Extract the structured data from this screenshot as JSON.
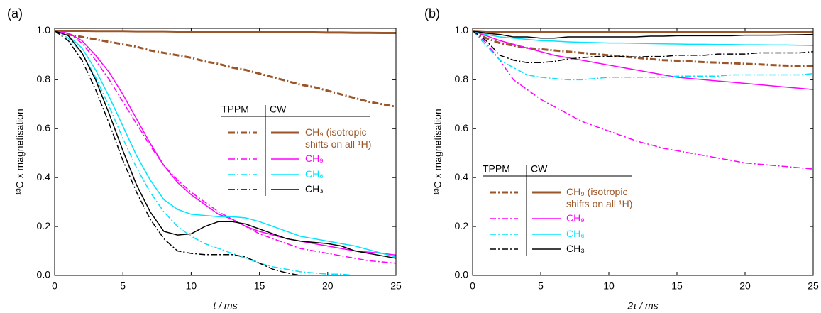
{
  "chart_data": [
    {
      "type": "line",
      "panel_label": "(a)",
      "x_label": "t / ms",
      "y_label": "¹³C x magnetisation",
      "xlim": [
        0,
        25
      ],
      "xticks": [
        0,
        5,
        10,
        15,
        20,
        25
      ],
      "ylim": [
        0,
        1.01
      ],
      "yticks": [
        {
          "value": 0,
          "label": "0.0"
        },
        0.2,
        0.4,
        0.6,
        0.8,
        {
          "value": 1,
          "label": "1.0"
        }
      ],
      "legend_position": "center-right",
      "legend_columns": [
        "TPPM",
        "CW"
      ],
      "x": [
        0,
        1,
        2,
        3,
        4,
        5,
        6,
        7,
        8,
        9,
        10,
        11,
        12,
        13,
        14,
        15,
        16,
        17,
        18,
        19,
        20,
        21,
        22,
        23,
        24,
        25
      ],
      "series": [
        {
          "name": "CH₉ (isotropic shifts on all ¹H)",
          "color": "#9a5528",
          "width": 3,
          "values_by_column": [
            [
              1.0,
              0.985,
              0.975,
              0.965,
              0.955,
              0.945,
              0.935,
              0.92,
              0.91,
              0.9,
              0.89,
              0.875,
              0.865,
              0.85,
              0.84,
              0.825,
              0.81,
              0.795,
              0.78,
              0.77,
              0.755,
              0.74,
              0.725,
              0.71,
              0.7,
              0.69
            ],
            [
              1.0,
              1.0,
              1.0,
              0.999,
              0.999,
              0.999,
              0.998,
              0.998,
              0.998,
              0.997,
              0.997,
              0.997,
              0.996,
              0.996,
              0.996,
              0.995,
              0.995,
              0.994,
              0.994,
              0.994,
              0.993,
              0.993,
              0.992,
              0.992,
              0.991,
              0.991
            ]
          ]
        },
        {
          "name": "CH₉",
          "color": "#ff00ff",
          "width": 1.5,
          "values_by_column": [
            [
              1.0,
              0.99,
              0.95,
              0.88,
              0.8,
              0.71,
              0.62,
              0.53,
              0.45,
              0.39,
              0.34,
              0.3,
              0.26,
              0.23,
              0.2,
              0.17,
              0.15,
              0.13,
              0.11,
              0.1,
              0.09,
              0.08,
              0.07,
              0.06,
              0.055,
              0.05
            ],
            [
              1.0,
              0.99,
              0.96,
              0.9,
              0.83,
              0.74,
              0.64,
              0.54,
              0.45,
              0.38,
              0.33,
              0.29,
              0.25,
              0.23,
              0.2,
              0.18,
              0.165,
              0.15,
              0.14,
              0.13,
              0.12,
              0.11,
              0.1,
              0.095,
              0.09,
              0.083
            ]
          ]
        },
        {
          "name": "CH₆",
          "color": "#00e5ff",
          "width": 1.5,
          "values_by_column": [
            [
              1.0,
              0.97,
              0.91,
              0.81,
              0.69,
              0.56,
              0.44,
              0.34,
              0.26,
              0.2,
              0.16,
              0.13,
              0.11,
              0.09,
              0.07,
              0.05,
              0.035,
              0.025,
              0.015,
              0.01,
              0.005,
              0.005,
              0.0,
              0.0,
              0.0,
              0.0
            ],
            [
              1.0,
              0.98,
              0.93,
              0.84,
              0.73,
              0.61,
              0.49,
              0.39,
              0.31,
              0.27,
              0.25,
              0.245,
              0.24,
              0.24,
              0.235,
              0.22,
              0.2,
              0.18,
              0.16,
              0.15,
              0.14,
              0.13,
              0.12,
              0.105,
              0.09,
              0.075
            ]
          ]
        },
        {
          "name": "CH₃",
          "color": "#000000",
          "width": 1.5,
          "values_by_column": [
            [
              1.0,
              0.96,
              0.88,
              0.76,
              0.62,
              0.47,
              0.34,
              0.23,
              0.15,
              0.1,
              0.09,
              0.085,
              0.085,
              0.085,
              0.075,
              0.05,
              0.025,
              0.01,
              0.0,
              0.0,
              0.0,
              0.0,
              0.0,
              0.0,
              0.0,
              0.0
            ],
            [
              1.0,
              0.98,
              0.91,
              0.8,
              0.66,
              0.51,
              0.37,
              0.26,
              0.18,
              0.165,
              0.17,
              0.2,
              0.22,
              0.22,
              0.21,
              0.19,
              0.17,
              0.15,
              0.14,
              0.135,
              0.13,
              0.12,
              0.1,
              0.09,
              0.08,
              0.07
            ]
          ]
        }
      ]
    },
    {
      "type": "line",
      "panel_label": "(b)",
      "x_label": "2τ / ms",
      "y_label": "¹³C x magnetisation",
      "xlim": [
        0,
        25
      ],
      "xticks": [
        0,
        5,
        10,
        15,
        20,
        25
      ],
      "ylim": [
        0,
        1.01
      ],
      "yticks": [
        {
          "value": 0,
          "label": "0.0"
        },
        0.2,
        0.4,
        0.6,
        0.8,
        {
          "value": 1,
          "label": "1.0"
        }
      ],
      "legend_position": "lower-left",
      "legend_columns": [
        "TPPM",
        "CW"
      ],
      "x": [
        0,
        1,
        2,
        3,
        4,
        5,
        6,
        7,
        8,
        9,
        10,
        11,
        12,
        13,
        14,
        15,
        16,
        17,
        18,
        19,
        20,
        21,
        22,
        23,
        24,
        25
      ],
      "series": [
        {
          "name": "CH₉ (isotropic shifts on all ¹H)",
          "color": "#9a5528",
          "width": 3,
          "values_by_column": [
            [
              1.0,
              0.97,
              0.95,
              0.94,
              0.93,
              0.925,
              0.92,
              0.915,
              0.91,
              0.905,
              0.9,
              0.895,
              0.89,
              0.885,
              0.88,
              0.878,
              0.875,
              0.872,
              0.87,
              0.868,
              0.865,
              0.863,
              0.86,
              0.858,
              0.856,
              0.855
            ],
            [
              1.0,
              0.997,
              0.996,
              0.996,
              0.995,
              0.995,
              0.995,
              0.995,
              0.995,
              0.995,
              0.995,
              0.995,
              0.995,
              0.995,
              0.995,
              0.995,
              0.995,
              0.995,
              0.995,
              0.995,
              0.995,
              0.995,
              0.995,
              0.995,
              0.995,
              0.995
            ]
          ]
        },
        {
          "name": "CH₉",
          "color": "#ff00ff",
          "width": 1.5,
          "values_by_column": [
            [
              1.0,
              0.95,
              0.88,
              0.8,
              0.76,
              0.72,
              0.69,
              0.66,
              0.63,
              0.61,
              0.59,
              0.57,
              0.55,
              0.535,
              0.52,
              0.51,
              0.5,
              0.49,
              0.48,
              0.47,
              0.46,
              0.455,
              0.45,
              0.445,
              0.44,
              0.435
            ],
            [
              1.0,
              0.98,
              0.96,
              0.945,
              0.93,
              0.915,
              0.9,
              0.89,
              0.88,
              0.87,
              0.86,
              0.85,
              0.84,
              0.83,
              0.82,
              0.81,
              0.805,
              0.8,
              0.795,
              0.79,
              0.785,
              0.78,
              0.775,
              0.77,
              0.765,
              0.76
            ]
          ]
        },
        {
          "name": "CH₆",
          "color": "#00e5ff",
          "width": 1.5,
          "values_by_column": [
            [
              1.0,
              0.94,
              0.88,
              0.85,
              0.82,
              0.81,
              0.805,
              0.8,
              0.8,
              0.805,
              0.81,
              0.81,
              0.81,
              0.81,
              0.81,
              0.815,
              0.815,
              0.815,
              0.815,
              0.82,
              0.82,
              0.82,
              0.82,
              0.82,
              0.82,
              0.825
            ],
            [
              1.0,
              0.985,
              0.975,
              0.97,
              0.965,
              0.96,
              0.958,
              0.955,
              0.953,
              0.952,
              0.95,
              0.95,
              0.949,
              0.948,
              0.947,
              0.946,
              0.945,
              0.945,
              0.944,
              0.944,
              0.943,
              0.943,
              0.942,
              0.942,
              0.941,
              0.94
            ]
          ]
        },
        {
          "name": "CH₃",
          "color": "#000000",
          "width": 1.5,
          "values_by_column": [
            [
              1.0,
              0.96,
              0.9,
              0.88,
              0.87,
              0.87,
              0.875,
              0.885,
              0.89,
              0.895,
              0.895,
              0.895,
              0.893,
              0.895,
              0.895,
              0.9,
              0.9,
              0.9,
              0.905,
              0.905,
              0.905,
              0.91,
              0.91,
              0.91,
              0.91,
              0.915
            ],
            [
              1.0,
              0.99,
              0.985,
              0.975,
              0.975,
              0.97,
              0.97,
              0.975,
              0.975,
              0.975,
              0.975,
              0.975,
              0.975,
              0.978,
              0.978,
              0.98,
              0.98,
              0.98,
              0.98,
              0.98,
              0.982,
              0.982,
              0.982,
              0.983,
              0.984,
              0.985
            ]
          ]
        }
      ]
    }
  ]
}
